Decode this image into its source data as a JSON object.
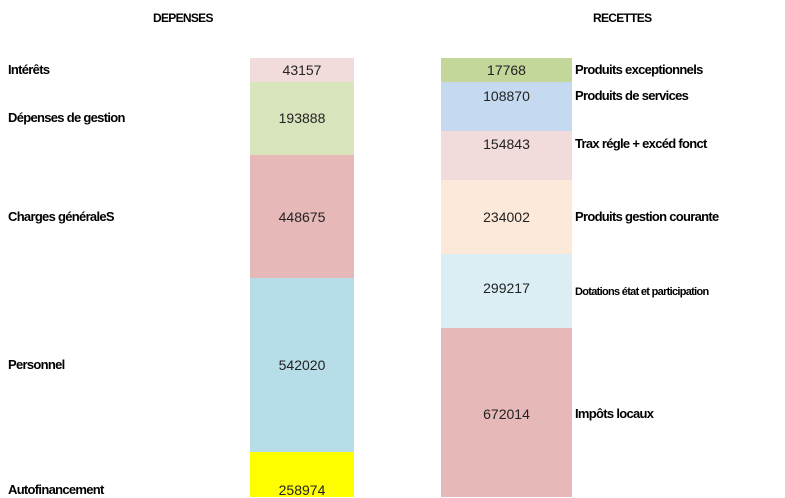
{
  "headers": {
    "left": "DEPENSES",
    "right": "RECETTES"
  },
  "depenses": [
    {
      "label": "Intérêts",
      "value": "43157"
    },
    {
      "label": "Dépenses de gestion",
      "value": "193888"
    },
    {
      "label": "Charges généraleS",
      "value": "448675"
    },
    {
      "label": "Personnel",
      "value": "542020"
    },
    {
      "label": "Autofinancement",
      "value": "258974"
    }
  ],
  "recettes": [
    {
      "label": "Produits exceptionnels",
      "value": "17768"
    },
    {
      "label": "Produits de services",
      "value": "108870"
    },
    {
      "label": "Trax régle + excéd fonct",
      "value": "154843"
    },
    {
      "label": "Produits gestion courante",
      "value": "234002"
    },
    {
      "label": "Dotations état et participation",
      "value": "299217"
    },
    {
      "label": "Impôts locaux",
      "value": "672014"
    }
  ]
}
